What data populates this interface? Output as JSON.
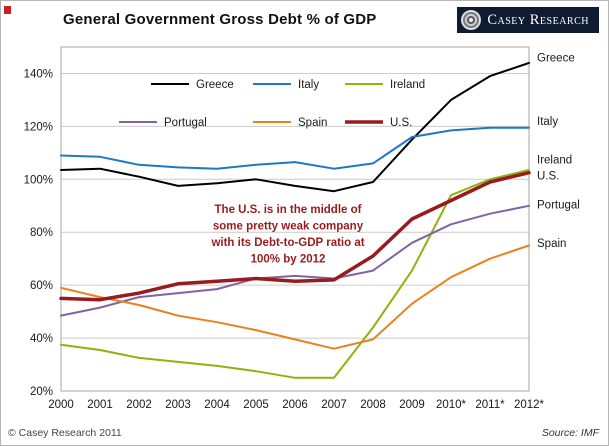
{
  "page": {
    "background": "#ffffff",
    "frame_border": "#b6b6b6"
  },
  "header": {
    "title": "General Government Gross Debt % of GDP",
    "logo_text": "Casey Research"
  },
  "footer": {
    "copyright": "© Casey Research 2011",
    "source": "Source: IMF"
  },
  "chart_data": {
    "type": "line",
    "title": "General Government Gross Debt % of GDP",
    "xlabel": "",
    "ylabel": "",
    "categories": [
      "2000",
      "2001",
      "2002",
      "2003",
      "2004",
      "2005",
      "2006",
      "2007",
      "2008",
      "2009",
      "2010*",
      "2011*",
      "2012*"
    ],
    "ylim": [
      20,
      150
    ],
    "yticks": [
      20,
      40,
      60,
      80,
      100,
      120,
      140
    ],
    "ytick_suffix": "%",
    "grid": true,
    "grid_color": "#cccccc",
    "plot_border_color": "#a6a6a6",
    "legend_position": "top-left-inside",
    "legend_rows": [
      [
        "Greece",
        "Italy",
        "Ireland"
      ],
      [
        "Portugal",
        "Spain",
        "U.S."
      ]
    ],
    "series": [
      {
        "name": "Greece",
        "color": "#000000",
        "width": 2,
        "values": [
          103.5,
          104,
          101,
          97.5,
          98.5,
          100,
          97.5,
          95.5,
          99,
          115,
          130,
          139,
          144
        ]
      },
      {
        "name": "Italy",
        "color": "#1e78c8",
        "width": 2,
        "values": [
          109,
          108.5,
          105.5,
          104.5,
          104,
          105.5,
          106.5,
          104,
          106,
          116,
          118.5,
          119.5,
          119.5
        ]
      },
      {
        "name": "Ireland",
        "color": "#8cb40f",
        "width": 2,
        "values": [
          37.5,
          35.5,
          32.5,
          31,
          29.5,
          27.5,
          25,
          25,
          44,
          65.5,
          94,
          100,
          103.5
        ]
      },
      {
        "name": "Portugal",
        "color": "#8064a2",
        "width": 2,
        "values": [
          48.5,
          51.5,
          55.5,
          57,
          58.5,
          62.5,
          63.5,
          62.5,
          65.5,
          76,
          83,
          87,
          90
        ]
      },
      {
        "name": "Spain",
        "color": "#e8821c",
        "width": 2,
        "values": [
          59,
          55.5,
          52.5,
          48.5,
          46,
          43,
          39.5,
          36,
          39.5,
          53,
          63,
          70,
          75
        ]
      },
      {
        "name": "U.S.",
        "color": "#9a1b1e",
        "width": 3.5,
        "values": [
          55,
          54.5,
          57,
          60.5,
          61.5,
          62.5,
          61.5,
          62,
          71,
          85,
          92,
          99,
          102.5
        ]
      }
    ],
    "end_labels": [
      {
        "name": "Greece",
        "value": 146
      },
      {
        "name": "Italy",
        "value": 122
      },
      {
        "name": "Ireland",
        "value": 107.5
      },
      {
        "name": "U.S.",
        "value": 101.5
      },
      {
        "name": "Portugal",
        "value": 90.5
      },
      {
        "name": "Spain",
        "value": 76
      }
    ],
    "annotation": {
      "color": "#9a1b1e",
      "lines": [
        "The U.S. is in the middle of",
        "some pretty weak company",
        "with its Debt-to-GDP ratio at",
        "100% by 2012"
      ]
    }
  }
}
